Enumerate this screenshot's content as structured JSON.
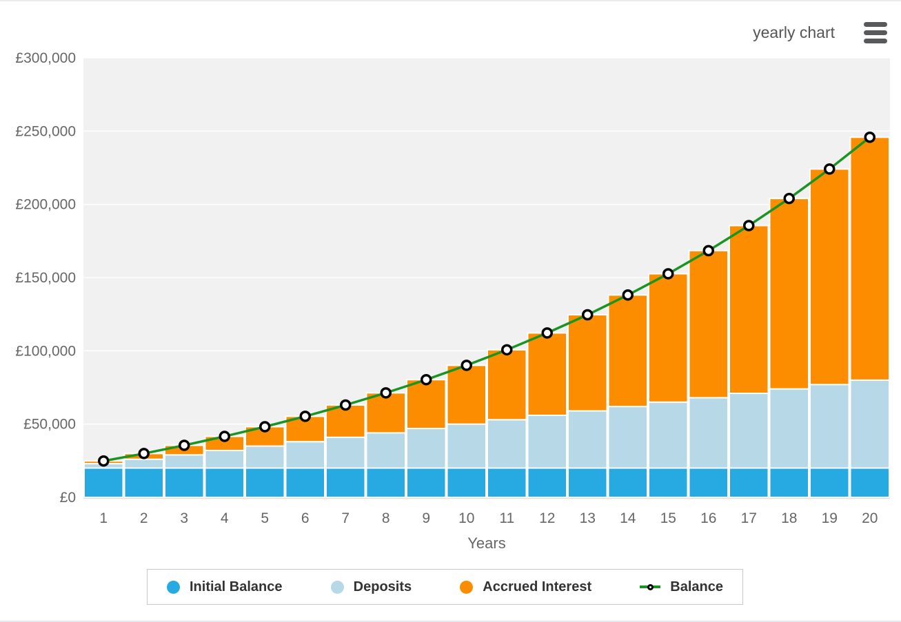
{
  "header": {
    "title": "yearly chart",
    "menu_icon": "hamburger-menu"
  },
  "axes": {
    "xlabel": "Years"
  },
  "legend": {
    "position": "bottom",
    "items": [
      {
        "label": "Initial Balance",
        "swatch": "circle",
        "color": "#27a9e1"
      },
      {
        "label": "Deposits",
        "swatch": "circle",
        "color": "#b6d8e7"
      },
      {
        "label": "Accrued Interest",
        "swatch": "circle",
        "color": "#fc8d00"
      },
      {
        "label": "Balance",
        "swatch": "line-marker",
        "color": "#1a9422"
      }
    ]
  },
  "colors": {
    "initial_balance": "#27a9e1",
    "deposits": "#b6d8e7",
    "accrued_interest": "#fc8d00",
    "balance_line": "#1a9422",
    "marker_fill": "#ffffff",
    "marker_stroke": "#000000",
    "plot_background": "#f1f1f1",
    "gridline": "#ffffff",
    "axis_text": "#666666"
  },
  "chart_data": {
    "type": "bar",
    "subtype": "stacked-columns-with-line-overlay",
    "title": "yearly chart",
    "xlabel": "Years",
    "ylabel": "",
    "categories": [
      1,
      2,
      3,
      4,
      5,
      6,
      7,
      8,
      9,
      10,
      11,
      12,
      13,
      14,
      15,
      16,
      17,
      18,
      19,
      20
    ],
    "ylim": [
      0,
      300000
    ],
    "yticks": [
      0,
      50000,
      100000,
      150000,
      200000,
      250000,
      300000
    ],
    "ytick_labels": [
      "£0",
      "£50,000",
      "£100,000",
      "£150,000",
      "£200,000",
      "£250,000",
      "£300,000"
    ],
    "grid": true,
    "legend_position": "bottom",
    "series": [
      {
        "name": "Initial Balance",
        "type": "bar",
        "stacked": true,
        "color": "#27a9e1",
        "values": [
          20000,
          20000,
          20000,
          20000,
          20000,
          20000,
          20000,
          20000,
          20000,
          20000,
          20000,
          20000,
          20000,
          20000,
          20000,
          20000,
          20000,
          20000,
          20000,
          20000
        ]
      },
      {
        "name": "Deposits",
        "type": "bar",
        "stacked": true,
        "color": "#b6d8e7",
        "values": [
          3000,
          6000,
          9000,
          12000,
          15000,
          18000,
          21000,
          24000,
          27000,
          30000,
          33000,
          36000,
          39000,
          42000,
          45000,
          48000,
          51000,
          54000,
          57000,
          60000
        ]
      },
      {
        "name": "Accrued Interest",
        "type": "bar",
        "stacked": true,
        "color": "#fc8d00",
        "values": [
          1800,
          3900,
          6500,
          9600,
          13200,
          17300,
          22000,
          27300,
          33300,
          40100,
          47700,
          56200,
          65600,
          76100,
          87600,
          100400,
          114500,
          130000,
          147100,
          165800
        ]
      },
      {
        "name": "Balance",
        "type": "line",
        "color": "#1a9422",
        "marker": {
          "shape": "circle",
          "fill": "#ffffff",
          "stroke": "#000000"
        },
        "values": [
          24800,
          29900,
          35500,
          41600,
          48200,
          55300,
          63000,
          71300,
          80300,
          90100,
          100700,
          112200,
          124600,
          138100,
          152600,
          168400,
          185500,
          204000,
          224100,
          245800
        ]
      }
    ]
  }
}
